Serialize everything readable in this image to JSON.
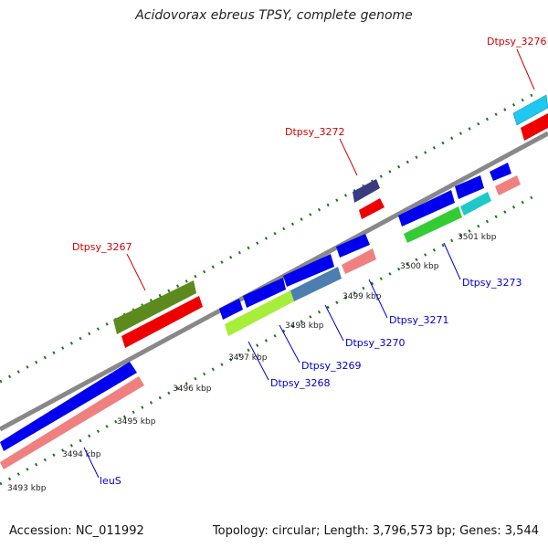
{
  "title": "Acidovorax ebreus TPSY, complete genome",
  "footer": {
    "accession": "Accession: NC_011992",
    "topology": "Topology: circular; Length: 3,796,573 bp; Genes: 3,544"
  },
  "colors": {
    "label_red": "#d50000",
    "label_blue": "#0000cc",
    "backbone": "#888888",
    "ticks": "#1a7a1a"
  },
  "kbp_labels": [
    {
      "text": "3493 kbp",
      "kbp": 3493
    },
    {
      "text": "3494 kbp",
      "kbp": 3494
    },
    {
      "text": "3495 kbp",
      "kbp": 3495
    },
    {
      "text": "3496 kbp",
      "kbp": 3496
    },
    {
      "text": "3497 kbp",
      "kbp": 3497
    },
    {
      "text": "3498 kbp",
      "kbp": 3498
    },
    {
      "text": "3499 kbp",
      "kbp": 3499
    },
    {
      "text": "3500 kbp",
      "kbp": 3500
    },
    {
      "text": "3501 kbp",
      "kbp": 3501
    }
  ],
  "gene_labels": [
    {
      "text": "Dtpsy_3276",
      "color": "red"
    },
    {
      "text": "Dtpsy_3272",
      "color": "red"
    },
    {
      "text": "Dtpsy_3267",
      "color": "red"
    },
    {
      "text": "Dtpsy_3273",
      "color": "blue"
    },
    {
      "text": "Dtpsy_3271",
      "color": "blue"
    },
    {
      "text": "Dtpsy_3270",
      "color": "blue"
    },
    {
      "text": "Dtpsy_3269",
      "color": "blue"
    },
    {
      "text": "Dtpsy_3268",
      "color": "blue"
    },
    {
      "text": "leuS",
      "color": "blue"
    }
  ]
}
